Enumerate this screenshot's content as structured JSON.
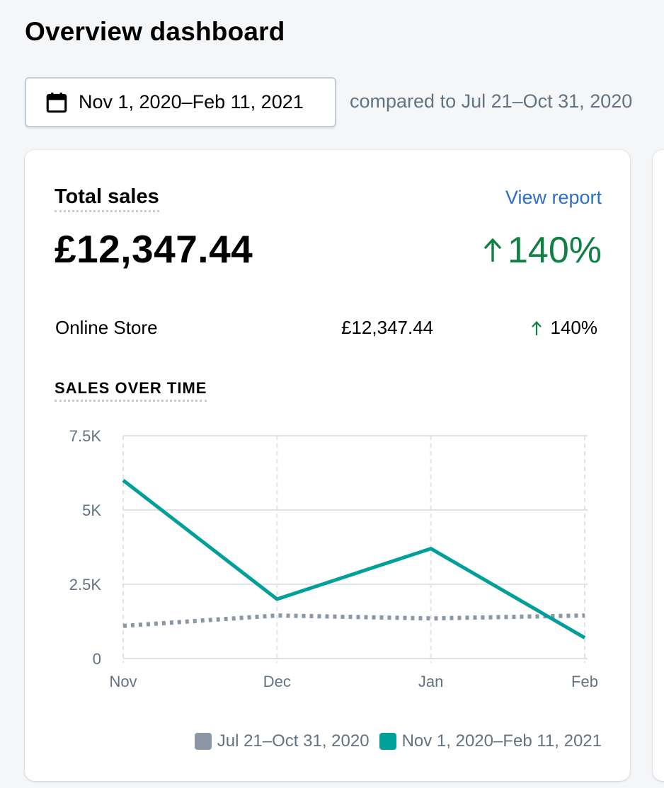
{
  "page": {
    "title": "Overview dashboard"
  },
  "date_range": {
    "label": "Nov 1, 2020–Feb 11, 2021",
    "icon": "calendar-icon",
    "compared_text": "compared to Jul 21–Oct 31, 2020"
  },
  "card": {
    "title": "Total sales",
    "view_report": "View report",
    "total_value": "£12,347.44",
    "total_change": "140%",
    "total_change_direction": "up",
    "breakdown": [
      {
        "name": "Online Store",
        "amount": "£12,347.44",
        "change": "140%"
      }
    ],
    "section_title": "SALES OVER TIME",
    "colors": {
      "positive": "#108043",
      "link": "#2c6ecb",
      "current_series": "#009f99",
      "previous_series": "#8c96a5"
    }
  },
  "chart_data": {
    "type": "line",
    "categories": [
      "Nov",
      "Dec",
      "Jan",
      "Feb"
    ],
    "y_ticks": [
      "7.5K",
      "5K",
      "2.5K",
      "0"
    ],
    "ylim": [
      0,
      7500
    ],
    "grid": true,
    "legend_position": "bottom-right",
    "series": [
      {
        "name": "Jul 21–Oct 31, 2020",
        "values": [
          1100,
          1450,
          1350,
          1450
        ],
        "style": "dotted",
        "color": "#8c96a5"
      },
      {
        "name": "Nov 1, 2020–Feb 11, 2021",
        "values": [
          6000,
          2000,
          3700,
          700
        ],
        "style": "solid",
        "color": "#009f99"
      }
    ]
  }
}
